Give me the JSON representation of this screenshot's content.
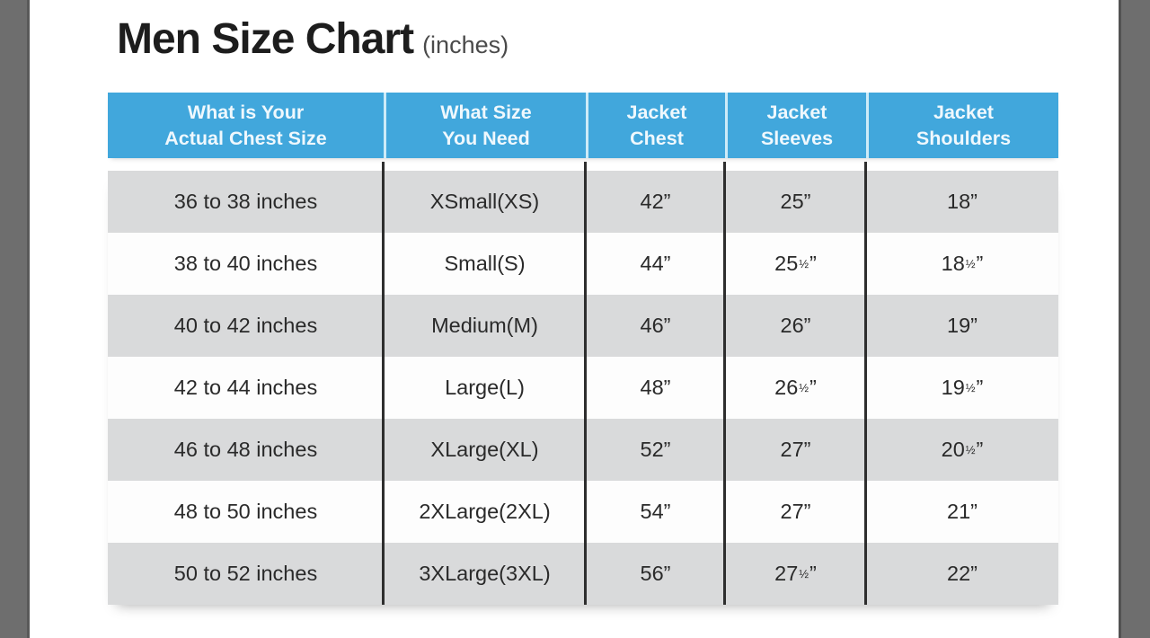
{
  "page": {
    "title": "Men Size Chart",
    "title_suffix": "(inches)"
  },
  "header_lines": [
    "What is Your\nActual Chest Size",
    "What Size\nYou Need",
    "Jacket\nChest",
    "Jacket\nSleeves",
    "Jacket\nShoulders"
  ],
  "chart_data": {
    "type": "table",
    "title": "Men Size Chart (inches)",
    "columns": [
      "What is Your Actual Chest Size",
      "What Size You Need",
      "Jacket Chest",
      "Jacket Sleeves",
      "Jacket Shoulders"
    ],
    "rows": [
      [
        "36 to 38 inches",
        "XSmall(XS)",
        "42”",
        "25”",
        "18”"
      ],
      [
        "38 to 40 inches",
        "Small(S)",
        "44”",
        "25½”",
        "18½”"
      ],
      [
        "40 to 42 inches",
        "Medium(M)",
        "46”",
        "26”",
        "19”"
      ],
      [
        "42 to 44 inches",
        "Large(L)",
        "48”",
        "26½”",
        "19½”"
      ],
      [
        "46 to 48 inches",
        "XLarge(XL)",
        "52”",
        "27”",
        "20½”"
      ],
      [
        "48 to 50 inches",
        "2XLarge(2XL)",
        "54”",
        "27”",
        "21”"
      ],
      [
        "50 to 52 inches",
        "3XLarge(3XL)",
        "56”",
        "27½”",
        "22”"
      ]
    ]
  },
  "colors": {
    "header_bg": "#41a7dc",
    "header_text": "#eff8fd",
    "header_divider": "#cdebf8",
    "row_alt_bg": "#d9dadb",
    "row_bg": "#fdfdfd",
    "column_rule": "#2e2e2e",
    "side_strip": "#6e6e6e",
    "title_text": "#1d1d1d"
  }
}
